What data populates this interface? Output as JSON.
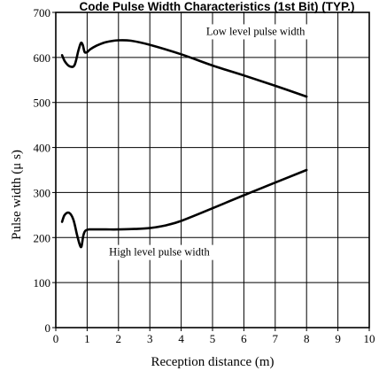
{
  "chart_data": {
    "type": "line",
    "title": "Code Pulse Width Characteristics (1st Bit) (TYP.)",
    "xlabel": "Reception distance (m)",
    "ylabel": "Pulse width (μ s)",
    "xlim": [
      0,
      10
    ],
    "ylim": [
      0,
      700
    ],
    "x_ticks": [
      "0",
      "1",
      "2",
      "3",
      "4",
      "5",
      "6",
      "7",
      "8",
      "9",
      "10"
    ],
    "y_ticks": [
      "0",
      "100",
      "200",
      "300",
      "400",
      "500",
      "600",
      "700"
    ],
    "grid": true,
    "series": [
      {
        "name": "Low level pulse width",
        "x": [
          0.2,
          0.3,
          0.45,
          0.6,
          0.72,
          0.8,
          0.86,
          0.92,
          1.0,
          1.1,
          1.3,
          1.6,
          2.0,
          2.4,
          3.0,
          4.0,
          5.0,
          6.0,
          7.0,
          8.0
        ],
        "y": [
          605,
          590,
          580,
          583,
          615,
          632,
          628,
          612,
          612,
          618,
          626,
          634,
          638,
          637,
          628,
          607,
          582,
          560,
          537,
          513
        ]
      },
      {
        "name": "High level pulse width",
        "x": [
          0.2,
          0.28,
          0.42,
          0.56,
          0.68,
          0.76,
          0.82,
          0.88,
          0.94,
          1.05,
          1.25,
          1.6,
          2.0,
          2.5,
          3.0,
          3.5,
          4.0,
          5.0,
          6.0,
          7.0,
          8.0
        ],
        "y": [
          235,
          250,
          255,
          240,
          205,
          185,
          180,
          205,
          215,
          218,
          218,
          218,
          218,
          219,
          221,
          227,
          237,
          265,
          294,
          322,
          350
        ]
      }
    ],
    "annotations": [
      {
        "text": "Low level pulse width",
        "x": 4.8,
        "y": 650
      },
      {
        "text": "High level pulse width",
        "x": 1.7,
        "y": 160
      }
    ]
  }
}
